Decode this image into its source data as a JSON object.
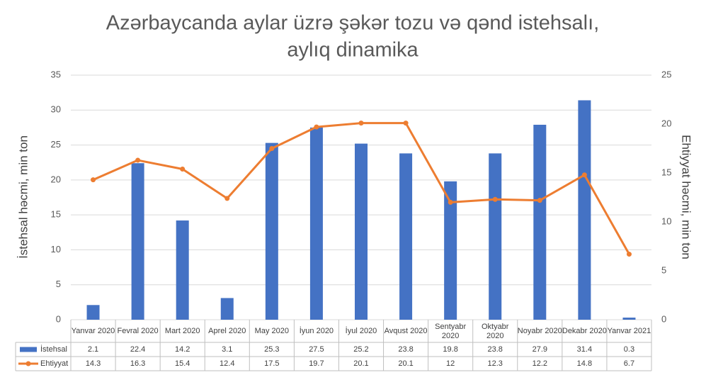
{
  "chart_data": {
    "type": "bar-line",
    "title": [
      "Azərbaycanda aylar üzrə şəkər tozu və qənd istehsalı,",
      "aylıq dinamika"
    ],
    "ylabel": "İstehsal həcmi, min ton",
    "y2label": "Ehtiyyat həcmi, min ton",
    "categories": [
      "Yanvar 2020",
      "Fevral 2020",
      "Mart 2020",
      "Aprel 2020",
      "May 2020",
      "İyun 2020",
      "İyul 2020",
      "Avqust 2020",
      "Sentyabr 2020",
      "Oktyabr 2020",
      "Noyabr 2020",
      "Dekabr 2020",
      "Yanvar 2021"
    ],
    "series": [
      {
        "name": "İstehsal",
        "type": "bar",
        "color": "#4472c4",
        "values": [
          2.1,
          22.4,
          14.2,
          3.1,
          25.3,
          27.5,
          25.2,
          23.8,
          19.8,
          23.8,
          27.9,
          31.4,
          0.3
        ]
      },
      {
        "name": "Ehtiyyat",
        "type": "line",
        "axis": "y2",
        "color": "#ed7d31",
        "values": [
          14.3,
          16.3,
          15.4,
          12.4,
          17.5,
          19.7,
          20.1,
          20.1,
          12,
          12.3,
          12.2,
          14.8,
          6.7
        ]
      }
    ],
    "ylim": [
      0,
      35
    ],
    "yticks": [
      0,
      5,
      10,
      15,
      20,
      25,
      30,
      35
    ],
    "y2lim": [
      0,
      25
    ],
    "y2ticks": [
      0,
      5,
      10,
      15,
      20,
      25
    ],
    "grid": true
  }
}
